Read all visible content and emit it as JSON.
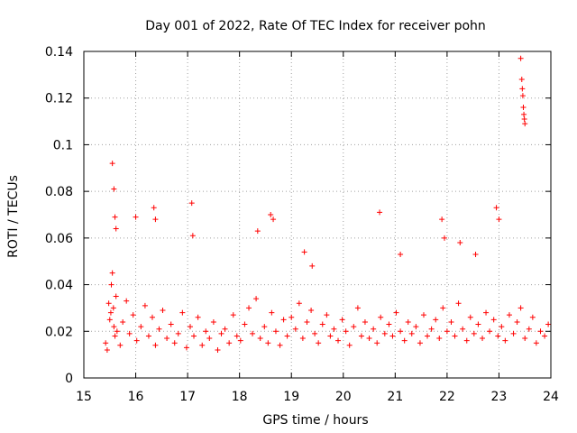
{
  "chart_data": {
    "type": "scatter",
    "title": "Day 001 of 2022, Rate Of TEC Index for receiver pohn",
    "xlabel": "GPS time / hours",
    "ylabel": "ROTI / TECUs",
    "xlim": [
      15,
      24
    ],
    "ylim": [
      0,
      0.14
    ],
    "xticks": [
      15,
      16,
      17,
      18,
      19,
      20,
      21,
      22,
      23,
      24
    ],
    "yticks": [
      0,
      0.02,
      0.04,
      0.06,
      0.08,
      0.1,
      0.12,
      0.14
    ],
    "xtick_labels": [
      "15",
      "16",
      "17",
      "18",
      "19",
      "20",
      "21",
      "22",
      "23",
      "24"
    ],
    "ytick_labels": [
      "0",
      "0.02",
      "0.04",
      "0.06",
      "0.08",
      "0.1",
      "0.12",
      "0.14"
    ],
    "grid": true,
    "marker": "+",
    "color": "#ff0000",
    "series": [
      {
        "name": "ROTI",
        "x": [
          15.42,
          15.48,
          15.52,
          15.55,
          15.58,
          15.6,
          15.62,
          15.45,
          15.5,
          15.53,
          15.57,
          15.64,
          15.7,
          15.75,
          15.82,
          15.88,
          15.95,
          16.02,
          16.1,
          16.18,
          16.25,
          16.32,
          16.38,
          16.45,
          16.52,
          16.6,
          16.68,
          16.75,
          16.82,
          16.9,
          16.98,
          17.05,
          17.12,
          17.2,
          17.28,
          17.35,
          17.42,
          17.5,
          17.58,
          17.65,
          17.72,
          17.8,
          17.88,
          17.95,
          18.02,
          18.1,
          18.18,
          18.25,
          18.32,
          18.4,
          18.48,
          18.55,
          18.62,
          18.7,
          18.78,
          18.85,
          18.92,
          19.0,
          19.08,
          19.15,
          19.22,
          19.3,
          19.38,
          19.45,
          19.52,
          19.6,
          19.68,
          19.75,
          19.82,
          19.9,
          19.98,
          20.05,
          20.12,
          20.2,
          20.28,
          20.35,
          20.42,
          20.5,
          20.58,
          20.65,
          20.72,
          20.8,
          20.88,
          20.95,
          21.02,
          21.1,
          21.18,
          21.25,
          21.32,
          21.4,
          21.48,
          21.55,
          21.62,
          21.7,
          21.78,
          21.85,
          21.92,
          22.0,
          22.08,
          22.15,
          22.22,
          22.3,
          22.38,
          22.45,
          22.52,
          22.6,
          22.68,
          22.75,
          22.82,
          22.9,
          22.98,
          23.05,
          23.12,
          23.2,
          23.28,
          23.35,
          23.42,
          23.5,
          23.58,
          23.65,
          23.72,
          23.8,
          23.88,
          23.95,
          15.55,
          15.58,
          15.6,
          15.62,
          16.0,
          16.35,
          16.38,
          17.08,
          17.1,
          18.35,
          18.6,
          18.65,
          19.25,
          19.4,
          20.7,
          21.1,
          21.9,
          21.95,
          22.25,
          22.55,
          22.95,
          23.0,
          23.42,
          23.44,
          23.45,
          23.46,
          23.47,
          23.48,
          23.49,
          23.5
        ],
        "y": [
          0.015,
          0.032,
          0.028,
          0.045,
          0.022,
          0.018,
          0.035,
          0.012,
          0.025,
          0.04,
          0.03,
          0.02,
          0.014,
          0.024,
          0.033,
          0.019,
          0.027,
          0.016,
          0.022,
          0.031,
          0.018,
          0.026,
          0.014,
          0.021,
          0.029,
          0.017,
          0.023,
          0.015,
          0.019,
          0.028,
          0.013,
          0.022,
          0.018,
          0.026,
          0.014,
          0.02,
          0.017,
          0.024,
          0.012,
          0.019,
          0.021,
          0.015,
          0.027,
          0.018,
          0.016,
          0.023,
          0.03,
          0.019,
          0.034,
          0.017,
          0.022,
          0.015,
          0.028,
          0.02,
          0.014,
          0.025,
          0.018,
          0.026,
          0.021,
          0.032,
          0.017,
          0.024,
          0.029,
          0.019,
          0.015,
          0.023,
          0.027,
          0.018,
          0.021,
          0.016,
          0.025,
          0.02,
          0.014,
          0.022,
          0.03,
          0.018,
          0.024,
          0.017,
          0.021,
          0.015,
          0.026,
          0.019,
          0.023,
          0.018,
          0.028,
          0.02,
          0.016,
          0.024,
          0.019,
          0.022,
          0.015,
          0.027,
          0.018,
          0.021,
          0.025,
          0.017,
          0.03,
          0.02,
          0.024,
          0.018,
          0.032,
          0.021,
          0.016,
          0.026,
          0.019,
          0.023,
          0.017,
          0.028,
          0.02,
          0.025,
          0.018,
          0.022,
          0.016,
          0.027,
          0.019,
          0.024,
          0.03,
          0.017,
          0.021,
          0.026,
          0.015,
          0.02,
          0.018,
          0.023,
          0.092,
          0.081,
          0.069,
          0.064,
          0.069,
          0.073,
          0.068,
          0.075,
          0.061,
          0.063,
          0.07,
          0.068,
          0.054,
          0.048,
          0.071,
          0.053,
          0.068,
          0.06,
          0.058,
          0.053,
          0.073,
          0.068,
          0.137,
          0.128,
          0.124,
          0.121,
          0.116,
          0.113,
          0.111,
          0.109
        ]
      }
    ]
  }
}
